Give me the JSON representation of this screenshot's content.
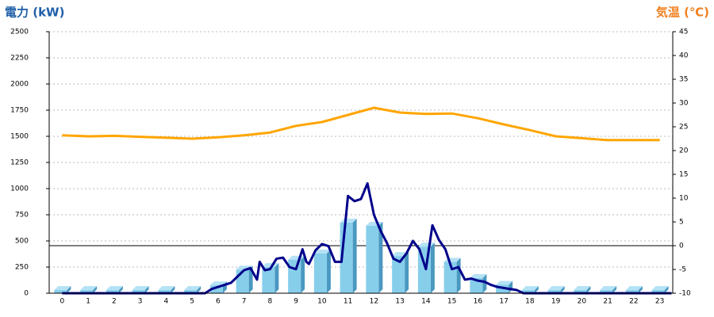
{
  "chart_data": {
    "type": "bar",
    "title": "電力 (kW)",
    "y2_title": "気温 (℃)",
    "categories": [
      "0",
      "1",
      "2",
      "3",
      "4",
      "5",
      "6",
      "7",
      "8",
      "9",
      "10",
      "11",
      "12",
      "13",
      "14",
      "15",
      "16",
      "17",
      "18",
      "19",
      "20",
      "21",
      "22",
      "23"
    ],
    "ylim": [
      0,
      2500
    ],
    "yticks": [
      0,
      250,
      500,
      750,
      1000,
      1250,
      1500,
      1750,
      2000,
      2250,
      2500
    ],
    "y2lim": [
      -10,
      45
    ],
    "y2ticks": [
      -10,
      -5,
      0,
      5,
      10,
      15,
      20,
      25,
      30,
      35,
      40,
      45
    ],
    "grid": true,
    "series": [
      {
        "type": "bar",
        "color": "#87ceeb",
        "values": [
          30,
          30,
          30,
          30,
          30,
          30,
          75,
          225,
          250,
          320,
          380,
          675,
          645,
          355,
          445,
          300,
          145,
          80,
          30,
          30,
          30,
          30,
          30,
          30
        ]
      },
      {
        "type": "line",
        "color": "#00008b",
        "x": [
          0,
          5.5,
          5.75,
          6,
          6.25,
          6.5,
          6.75,
          7,
          7.25,
          7.5,
          7.6,
          7.8,
          8,
          8.25,
          8.5,
          8.75,
          9,
          9.25,
          9.4,
          9.5,
          9.75,
          10,
          10.25,
          10.5,
          10.75,
          11,
          11.25,
          11.5,
          11.75,
          12,
          12.25,
          12.5,
          12.75,
          13,
          13.25,
          13.5,
          13.75,
          14,
          14.25,
          14.5,
          14.75,
          15,
          15.25,
          15.5,
          15.75,
          16,
          16.25,
          16.5,
          16.75,
          17,
          17.25,
          17.5,
          17.75,
          23.45
        ],
        "values": [
          0,
          0,
          40,
          60,
          80,
          100,
          160,
          220,
          240,
          130,
          300,
          220,
          230,
          330,
          340,
          250,
          230,
          420,
          300,
          280,
          410,
          470,
          450,
          300,
          300,
          930,
          880,
          900,
          1050,
          750,
          600,
          480,
          330,
          300,
          380,
          500,
          420,
          230,
          650,
          510,
          420,
          230,
          250,
          130,
          140,
          120,
          110,
          80,
          60,
          50,
          40,
          30,
          0,
          0
        ]
      },
      {
        "type": "line",
        "axis": "y2",
        "color": "#ffa500",
        "values": [
          23.2,
          23.0,
          23.1,
          22.9,
          22.7,
          22.5,
          22.8,
          23.2,
          23.8,
          25.2,
          26.0,
          27.5,
          29.0,
          28.0,
          27.7,
          27.8,
          26.8,
          25.5,
          24.3,
          23.0,
          22.6,
          22.2,
          22.2,
          22.2
        ]
      }
    ]
  }
}
